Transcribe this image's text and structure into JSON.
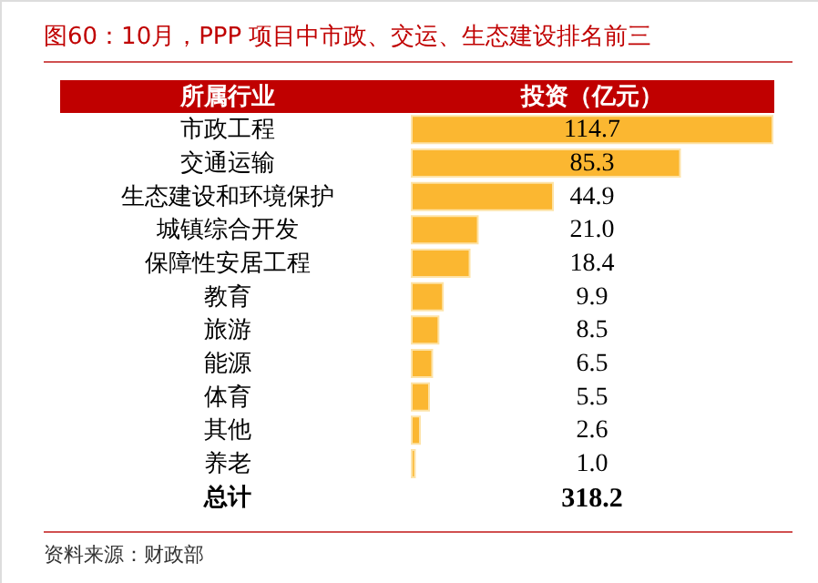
{
  "chart_data": {
    "type": "bar",
    "orientation": "horizontal",
    "title": "图60：10月，PPP 项目中市政、交运、生态建设排名前三",
    "ylabel": "所属行业",
    "xlabel": "投资（亿元）",
    "categories": [
      "市政工程",
      "交通运输",
      "生态建设和环境保护",
      "城镇综合开发",
      "保障性安居工程",
      "教育",
      "旅游",
      "能源",
      "体育",
      "其他",
      "养老"
    ],
    "values": [
      114.7,
      85.3,
      44.9,
      21.0,
      18.4,
      9.9,
      8.5,
      6.5,
      5.5,
      2.6,
      1.0
    ],
    "value_labels": [
      "114.7",
      "85.3",
      "44.9",
      "21.0",
      "18.4",
      "9.9",
      "8.5",
      "6.5",
      "5.5",
      "2.6",
      "1.0"
    ],
    "color": "#fbb731",
    "annotations": [
      "总计",
      "318.2",
      "资料来源：财政部"
    ]
  }
}
